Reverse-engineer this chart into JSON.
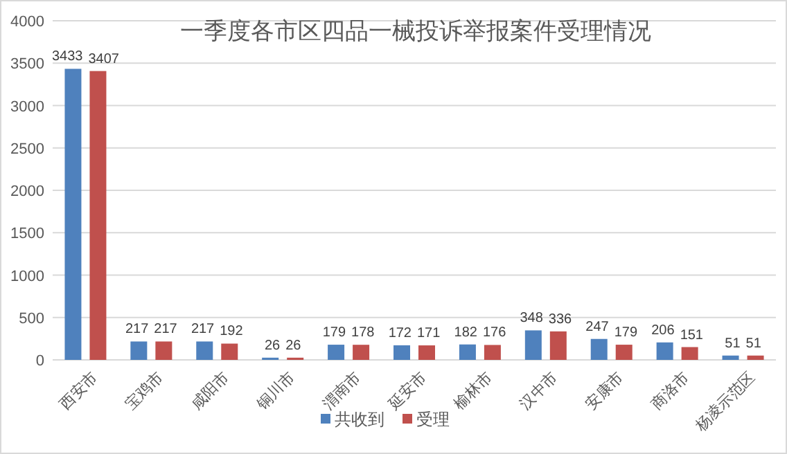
{
  "chart_data": {
    "type": "bar",
    "title": "一季度各市区四品一械投诉举报案件受理情况",
    "categories": [
      "西安市",
      "宝鸡市",
      "咸阳市",
      "铜川市",
      "渭南市",
      "延安市",
      "榆林市",
      "汉中市",
      "安康市",
      "商洛市",
      "杨凌示范区"
    ],
    "series": [
      {
        "name": "共收到",
        "color": "#4f81bd",
        "values": [
          3433,
          217,
          217,
          26,
          179,
          172,
          182,
          348,
          247,
          206,
          51
        ]
      },
      {
        "name": "受理",
        "color": "#c0504d",
        "values": [
          3407,
          217,
          192,
          26,
          178,
          171,
          176,
          336,
          179,
          151,
          51
        ]
      }
    ],
    "ylim": [
      0,
      4000
    ],
    "yticks": [
      0,
      500,
      1000,
      1500,
      2000,
      2500,
      3000,
      3500,
      4000
    ],
    "grid": "y",
    "legend": "bottom",
    "data_labels": true
  }
}
